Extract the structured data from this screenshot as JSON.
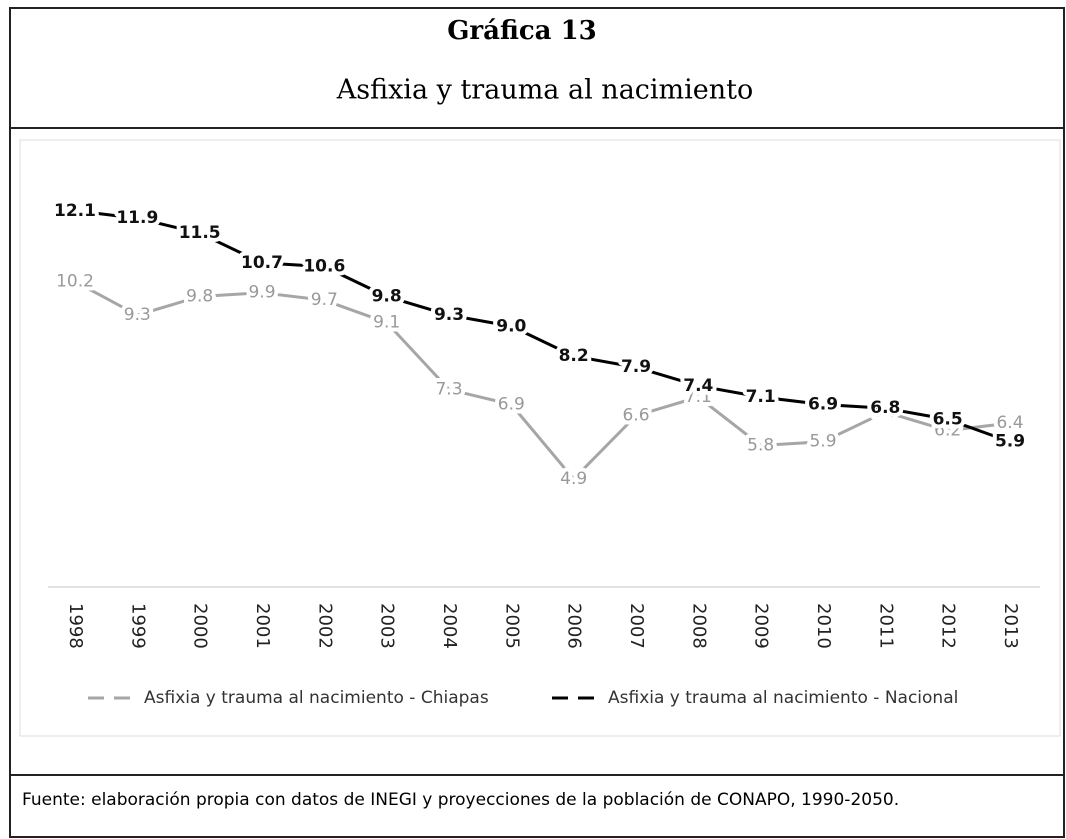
{
  "chart_data": {
    "type": "line",
    "title": "Gráfica 13",
    "subtitle": "Asfixia y trauma al nacimiento",
    "categories": [
      "1998",
      "1999",
      "2000",
      "2001",
      "2002",
      "2003",
      "2004",
      "2005",
      "2006",
      "2007",
      "2008",
      "2009",
      "2010",
      "2011",
      "2012",
      "2013"
    ],
    "series": [
      {
        "name": "Asfixia y trauma al nacimiento - Chiapas",
        "color": "#a6a6a6",
        "values": [
          10.2,
          9.3,
          9.8,
          9.9,
          9.7,
          9.1,
          7.3,
          6.9,
          4.9,
          6.6,
          7.1,
          5.8,
          5.9,
          6.7,
          6.2,
          6.4
        ]
      },
      {
        "name": "Asfixia y trauma al nacimiento - Nacional",
        "color": "#000000",
        "values": [
          12.1,
          11.9,
          11.5,
          10.7,
          10.6,
          9.8,
          9.3,
          9.0,
          8.2,
          7.9,
          7.4,
          7.1,
          6.9,
          6.8,
          6.5,
          5.9
        ],
        "value_labels": [
          "12.1",
          "11.9",
          "11.5",
          "10.7",
          "10.6",
          "9.8",
          "9.3",
          "9.0",
          "8.2",
          "7.9",
          "7.4",
          "7.1",
          "6.9",
          "6.8",
          "6.5",
          "5.9"
        ]
      }
    ],
    "ylim": [
      2,
      14
    ],
    "source": "Fuente: elaboración propia con datos de  INEGI y proyecciones de la población de CONAPO, 1990-2050."
  }
}
